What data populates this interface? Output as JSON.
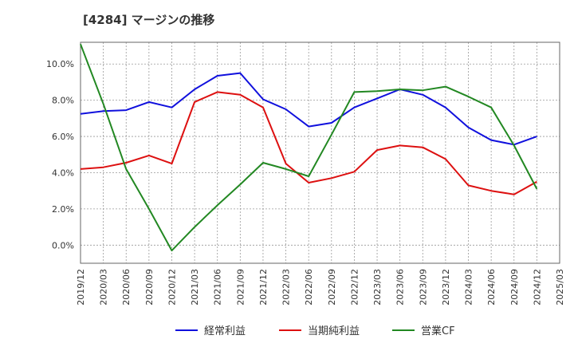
{
  "chart_data": {
    "type": "line",
    "title": "[4284]  マージンの推移",
    "x": [
      "2019/12",
      "2020/03",
      "2020/06",
      "2020/09",
      "2020/12",
      "2021/03",
      "2021/06",
      "2021/09",
      "2021/12",
      "2022/03",
      "2022/06",
      "2022/09",
      "2022/12",
      "2023/03",
      "2023/06",
      "2023/09",
      "2023/12",
      "2024/03",
      "2024/06",
      "2024/09",
      "2024/12"
    ],
    "x_ticks": [
      "2019/12",
      "2020/03",
      "2020/06",
      "2020/09",
      "2020/12",
      "2021/03",
      "2021/06",
      "2021/09",
      "2021/12",
      "2022/03",
      "2022/06",
      "2022/09",
      "2022/12",
      "2023/03",
      "2023/06",
      "2023/09",
      "2023/12",
      "2024/03",
      "2024/06",
      "2024/09",
      "2024/12",
      "2025/03"
    ],
    "y_ticks": [
      0,
      2,
      4,
      6,
      8,
      10
    ],
    "y_tick_labels": [
      "0.0%",
      "2.0%",
      "4.0%",
      "6.0%",
      "8.0%",
      "10.0%"
    ],
    "ylim": [
      -1.0,
      11.2
    ],
    "grid": true,
    "legend_position": "bottom",
    "series": [
      {
        "name": "経常利益",
        "color": "#1010dd",
        "values": [
          7.25,
          7.4,
          7.45,
          7.9,
          7.6,
          8.6,
          9.35,
          9.5,
          8.05,
          7.5,
          6.55,
          6.75,
          7.6,
          8.1,
          8.6,
          8.3,
          7.6,
          6.5,
          5.8,
          5.55,
          6.0
        ]
      },
      {
        "name": "当期純利益",
        "color": "#dd1010",
        "values": [
          4.2,
          4.3,
          4.55,
          4.95,
          4.5,
          7.9,
          8.45,
          8.3,
          7.6,
          4.5,
          3.45,
          3.7,
          4.05,
          5.25,
          5.5,
          5.4,
          4.75,
          3.3,
          3.0,
          2.8,
          3.5
        ]
      },
      {
        "name": "営業CF",
        "color": "#228822",
        "values": [
          11.1,
          7.8,
          4.2,
          2.0,
          -0.3,
          1.0,
          2.2,
          3.35,
          4.55,
          4.2,
          3.8,
          6.1,
          8.45,
          8.5,
          8.6,
          8.55,
          8.75,
          8.2,
          7.6,
          5.5,
          3.1
        ]
      }
    ]
  }
}
